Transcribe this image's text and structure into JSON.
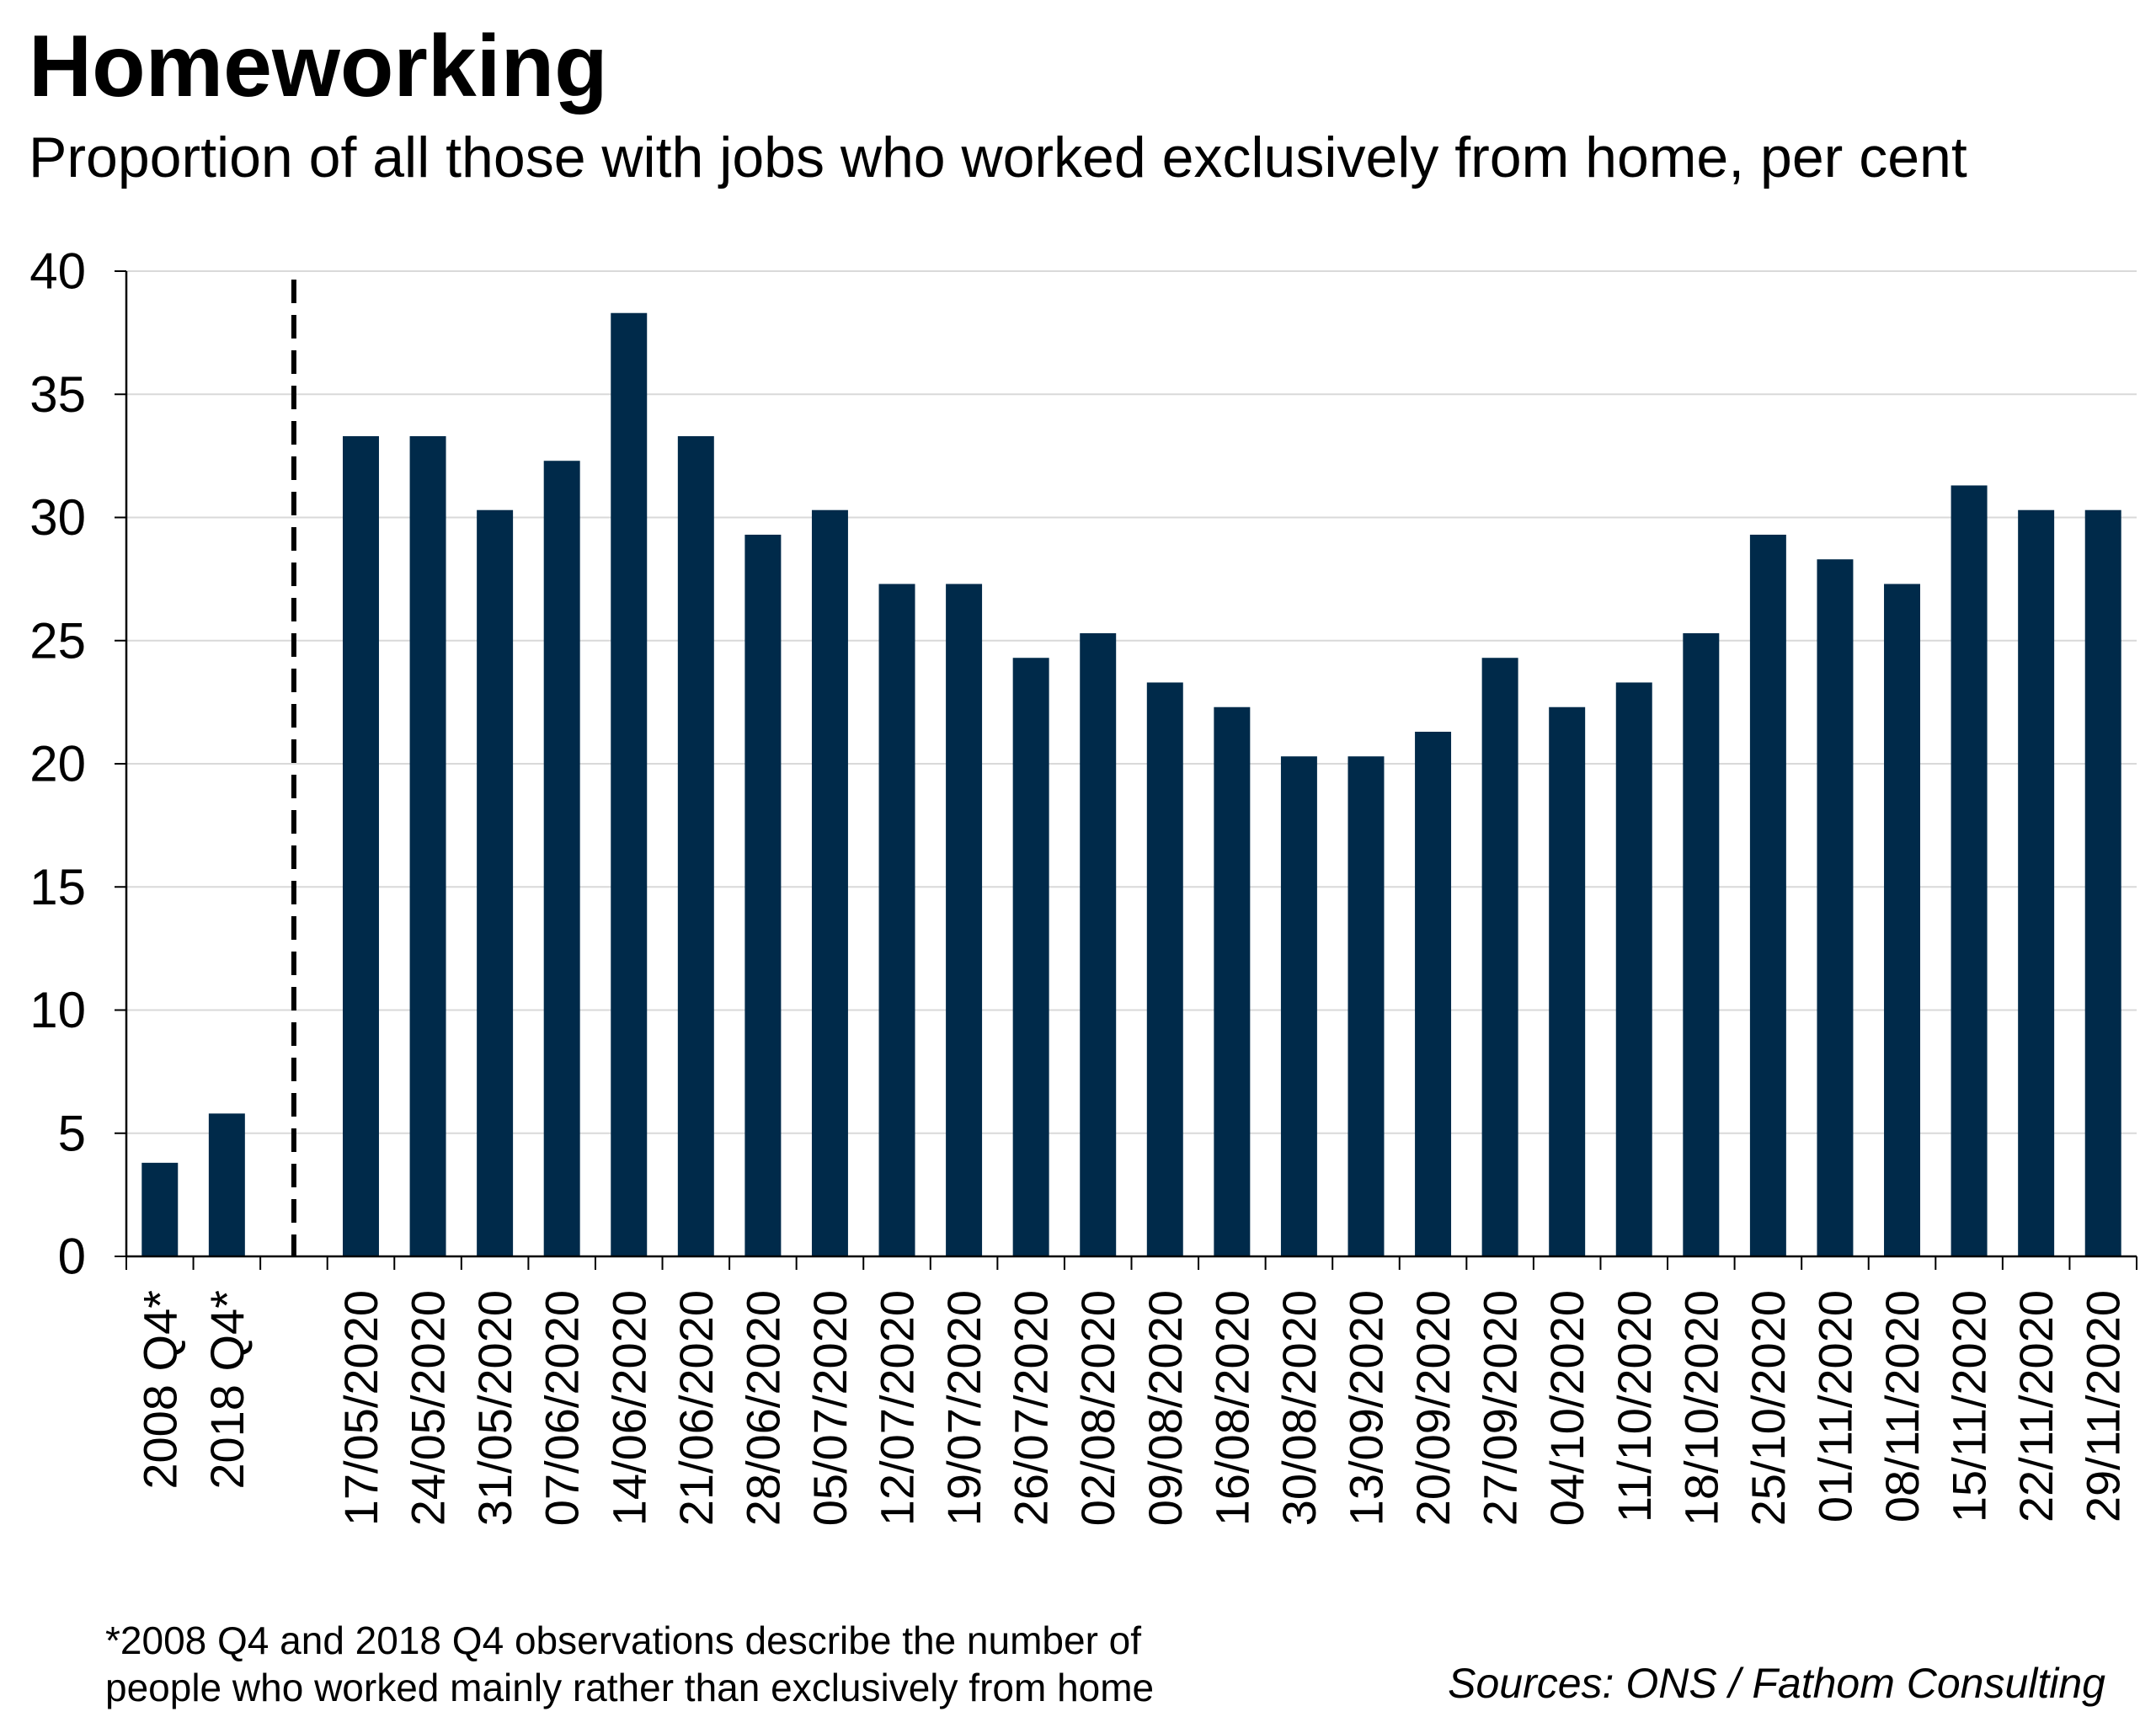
{
  "title": "Homeworking",
  "subtitle": "Proportion of all those with jobs who worked exclusively from home, per cent",
  "footnote": {
    "line1": "*2008 Q4 and 2018 Q4 observations describe the number of",
    "line2": "people who worked mainly rather than exclusively from home"
  },
  "source": "Sources: ONS / Fathom Consulting",
  "colors": {
    "bar": "#002a4a",
    "grid": "#d9d9d9",
    "axis": "#000000"
  },
  "chart_data": {
    "type": "bar",
    "categories": [
      "2008 Q4*",
      "2018 Q4*",
      "17/05/2020",
      "24/05/2020",
      "31/05/2020",
      "07/06/2020",
      "14/06/2020",
      "21/06/2020",
      "28/06/2020",
      "05/07/2020",
      "12/07/2020",
      "19/07/2020",
      "26/07/2020",
      "02/08/2020",
      "09/08/2020",
      "16/08/2020",
      "30/08/2020",
      "13/09/2020",
      "20/09/2020",
      "27/09/2020",
      "04/10/2020",
      "11/10/2020",
      "18/10/2020",
      "25/10/2020",
      "01/11/2020",
      "08/11/2020",
      "15/11/2020",
      "22/11/2020",
      "29/11/2020"
    ],
    "values": [
      3.8,
      5.8,
      33.3,
      33.3,
      30.3,
      32.3,
      38.3,
      33.3,
      29.3,
      30.3,
      27.3,
      27.3,
      24.3,
      25.3,
      23.3,
      22.3,
      20.3,
      20.3,
      21.3,
      24.3,
      22.3,
      23.3,
      25.3,
      29.3,
      28.3,
      27.3,
      31.3,
      30.3,
      30.3
    ],
    "ylim": [
      0,
      40
    ],
    "yticks": [
      "0",
      "5",
      "10",
      "15",
      "20",
      "25",
      "30",
      "35",
      "40"
    ],
    "grid": true,
    "divider_after": "2018 Q4*",
    "xlabel": "",
    "ylabel": ""
  }
}
